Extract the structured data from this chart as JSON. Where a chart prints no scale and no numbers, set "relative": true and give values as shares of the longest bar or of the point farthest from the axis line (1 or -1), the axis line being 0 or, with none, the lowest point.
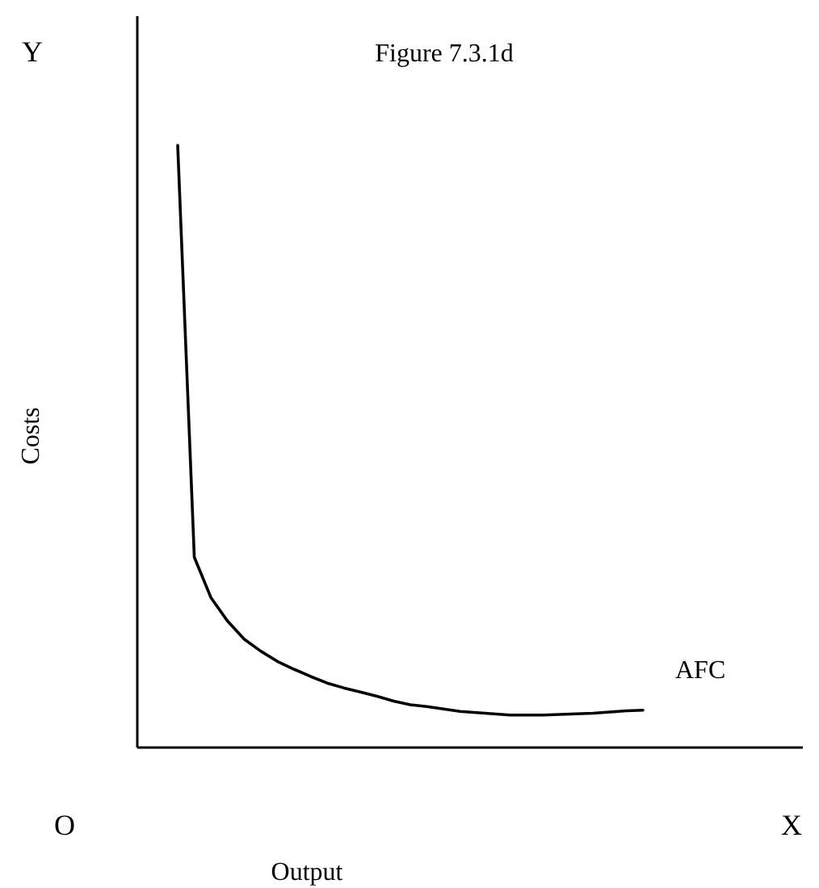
{
  "chart_data": {
    "type": "line",
    "title": "Figure 7.3.1d",
    "xlabel": "Output",
    "ylabel": "Costs",
    "relative": true,
    "legend": false,
    "marker": "none",
    "line_style": "solid",
    "annotations": [
      "Y",
      "X",
      "O"
    ],
    "categories": [
      null,
      null,
      null,
      null,
      null,
      null,
      null,
      null,
      null,
      null,
      null,
      null,
      null,
      null,
      null,
      null,
      null,
      null,
      null,
      null,
      null,
      null,
      null,
      null,
      null,
      null,
      null,
      null,
      null
    ],
    "series": [
      {
        "name": "AFC",
        "color": "#000000",
        "values": [
          1.0,
          0.316,
          0.249,
          0.21,
          0.18,
          0.16,
          0.143,
          0.13,
          0.118,
          0.107,
          0.099,
          0.092,
          0.085,
          0.077,
          0.071,
          0.068,
          0.064,
          0.06,
          0.058,
          0.056,
          0.054,
          0.054,
          0.054,
          0.055,
          0.056,
          0.057,
          0.059,
          0.061,
          0.062
        ]
      }
    ]
  }
}
